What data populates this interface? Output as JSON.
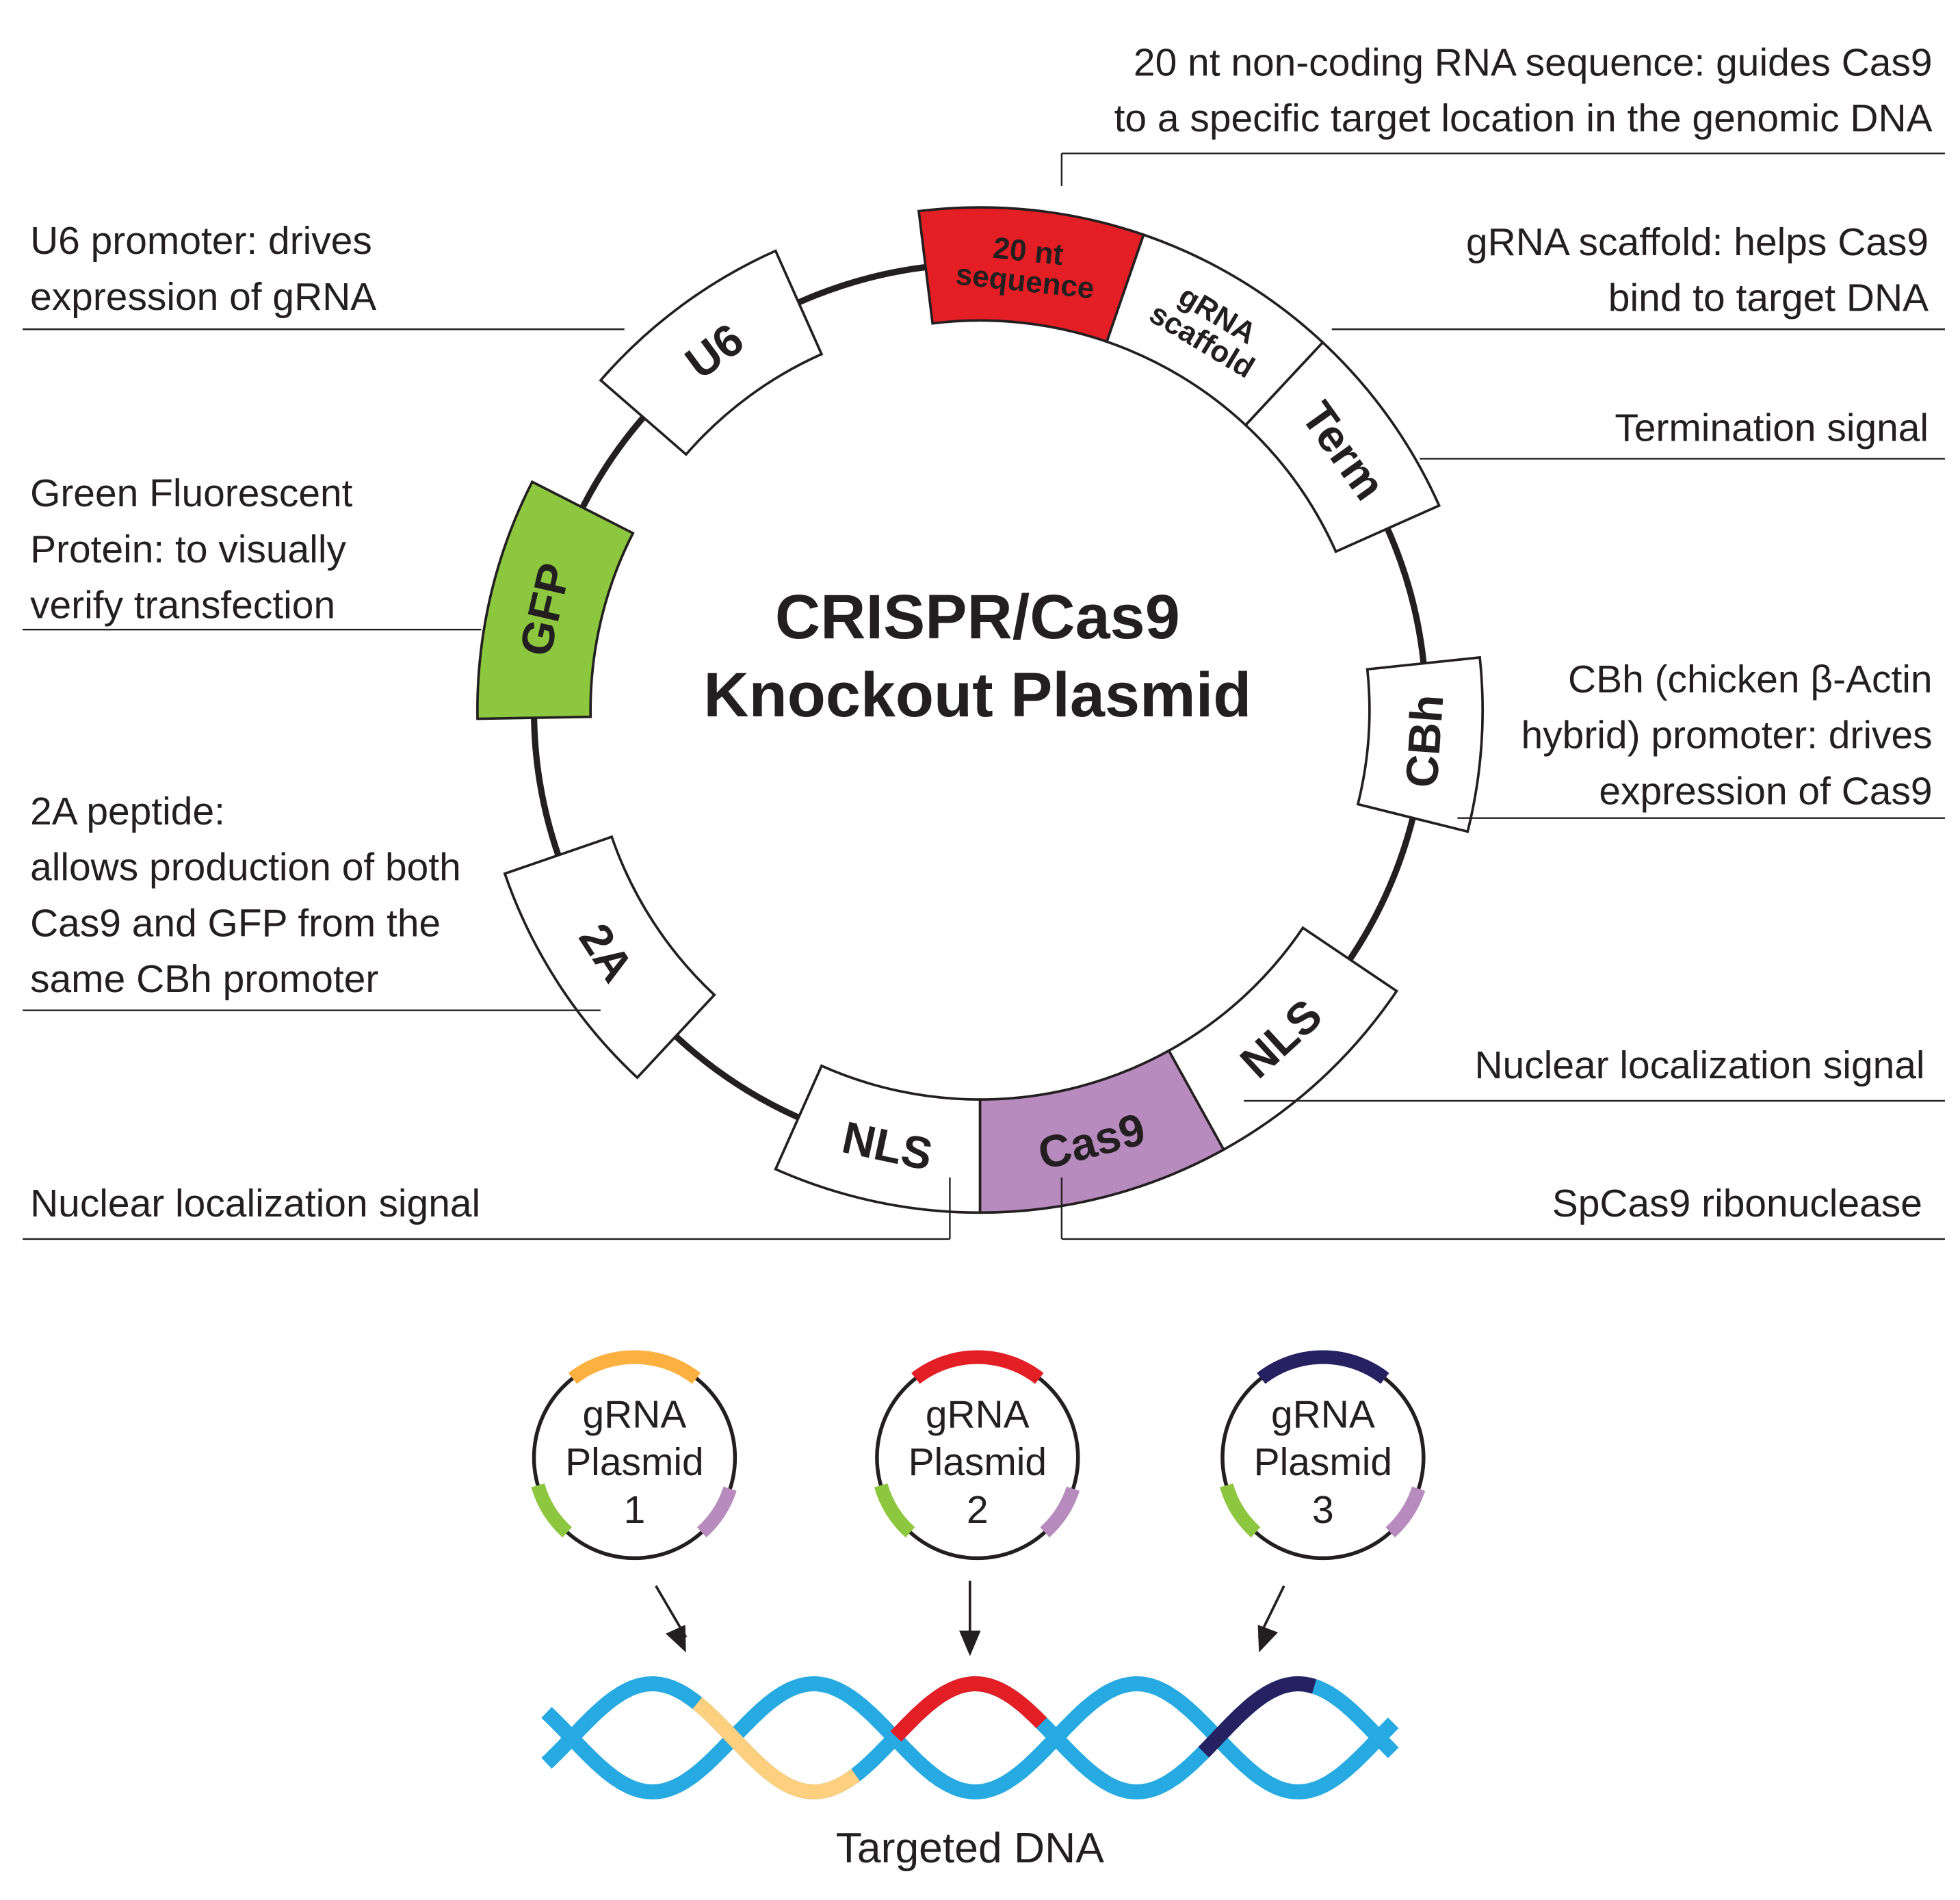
{
  "title": [
    "CRISPR/Cas9",
    "Knockout Plasmid"
  ],
  "colors": {
    "red": "#e31e24",
    "green": "#8dc63f",
    "purple": "#b88bbf",
    "orange": "#fbb040",
    "light_orange": "#fdd07f",
    "navy": "#262262",
    "dna_blue": "#27aae1",
    "line": "#231f20"
  },
  "segments": [
    {
      "label": [
        "20 nt",
        "sequence"
      ],
      "fill": "red",
      "text_color": "#ffffff"
    },
    {
      "label": [
        "gRNA",
        "scaffold"
      ],
      "fill": "white"
    },
    {
      "label": [
        "Term"
      ],
      "fill": "white"
    },
    {
      "label": [
        "CBh"
      ],
      "fill": "white"
    },
    {
      "label": [
        "NLS"
      ],
      "fill": "white"
    },
    {
      "label": [
        "Cas9"
      ],
      "fill": "purple"
    },
    {
      "label": [
        "NLS"
      ],
      "fill": "white"
    },
    {
      "label": [
        "2A"
      ],
      "fill": "white"
    },
    {
      "label": [
        "GFP"
      ],
      "fill": "green"
    },
    {
      "label": [
        "U6"
      ],
      "fill": "white"
    }
  ],
  "annotations": [
    {
      "lines": [
        "20 nt non-coding RNA sequence: guides Cas9",
        "to a specific target location in the genomic DNA"
      ]
    },
    {
      "lines": [
        "gRNA scaffold: helps Cas9",
        "bind to target DNA"
      ]
    },
    {
      "lines": [
        "Termination signal"
      ]
    },
    {
      "lines": [
        "CBh (chicken β-Actin",
        "hybrid) promoter: drives",
        "expression of Cas9"
      ]
    },
    {
      "lines": [
        "Nuclear localization signal"
      ]
    },
    {
      "lines": [
        "SpCas9 ribonuclease"
      ]
    },
    {
      "lines": [
        "Nuclear localization signal"
      ]
    },
    {
      "lines": [
        "2A peptide:",
        "allows production of both",
        "Cas9 and GFP from the",
        "same CBh promoter"
      ]
    },
    {
      "lines": [
        "Green Fluorescent",
        "Protein: to visually",
        "verify transfection"
      ]
    },
    {
      "lines": [
        "U6 promoter: drives",
        "expression of gRNA"
      ]
    }
  ],
  "grna_plasmids": [
    {
      "lines": [
        "gRNA",
        "Plasmid",
        "1"
      ],
      "color": "orange"
    },
    {
      "lines": [
        "gRNA",
        "Plasmid",
        "2"
      ],
      "color": "red"
    },
    {
      "lines": [
        "gRNA",
        "Plasmid",
        "3"
      ],
      "color": "navy"
    }
  ],
  "dna_label": "Targeted DNA"
}
